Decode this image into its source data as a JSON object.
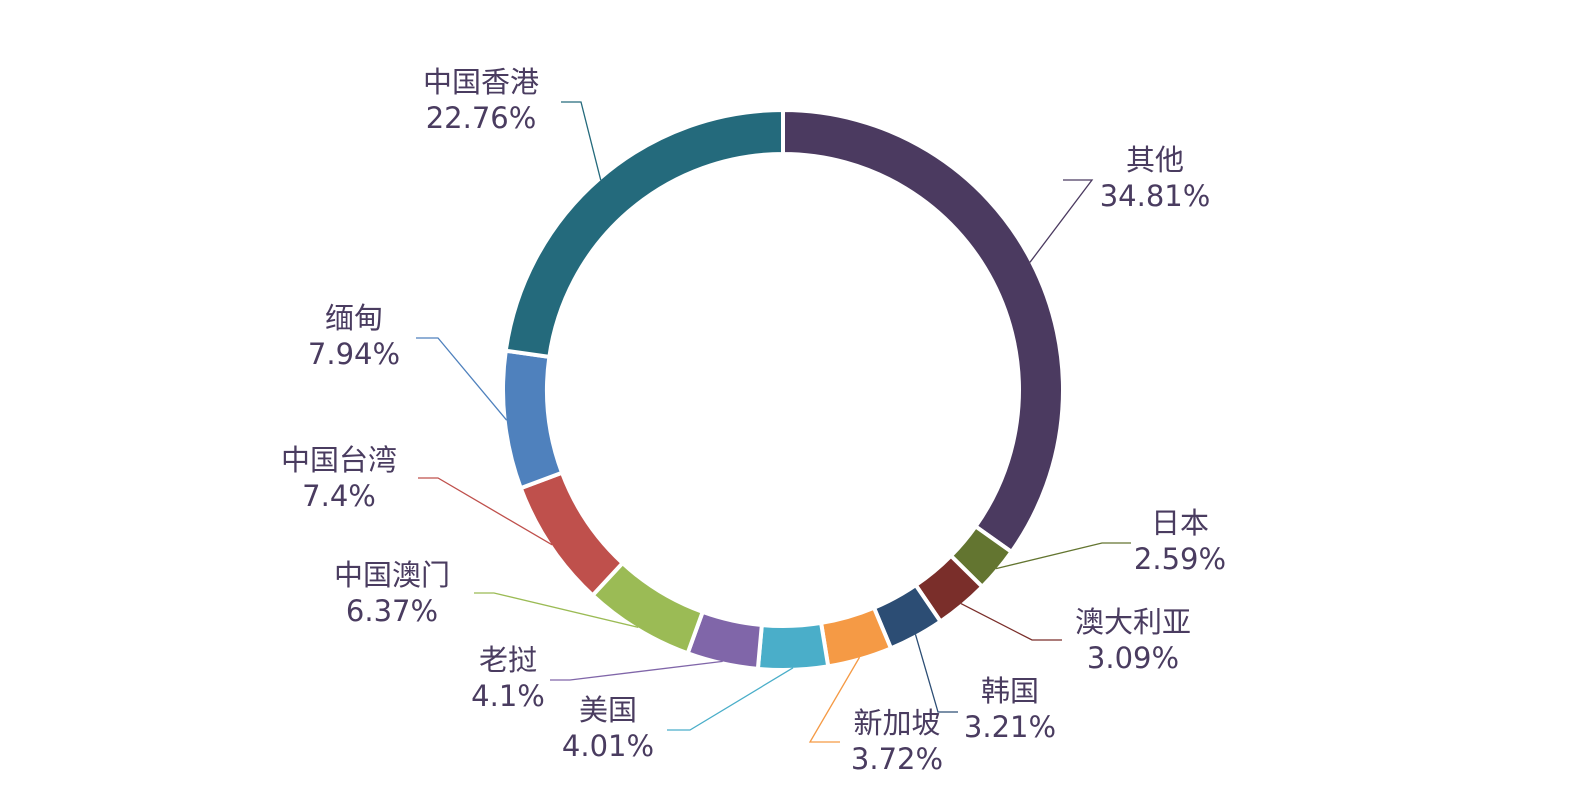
{
  "chart_data": {
    "type": "pie",
    "variant": "donut",
    "title": "",
    "slices": [
      {
        "label": "其他",
        "value": 34.81,
        "value_text": "34.81%",
        "color": "#4b3a60"
      },
      {
        "label": "日本",
        "value": 2.59,
        "value_text": "2.59%",
        "color": "#637530"
      },
      {
        "label": "澳大利亚",
        "value": 3.09,
        "value_text": "3.09%",
        "color": "#7a2e2a"
      },
      {
        "label": "韩国",
        "value": 3.21,
        "value_text": "3.21%",
        "color": "#2c4d74"
      },
      {
        "label": "新加坡",
        "value": 3.72,
        "value_text": "3.72%",
        "color": "#f59a45"
      },
      {
        "label": "美国",
        "value": 4.01,
        "value_text": "4.01%",
        "color": "#4aaec9"
      },
      {
        "label": "老挝",
        "value": 4.1,
        "value_text": "4.1%",
        "color": "#8066a9"
      },
      {
        "label": "中国澳门",
        "value": 6.37,
        "value_text": "6.37%",
        "color": "#9bbb55"
      },
      {
        "label": "中国台湾",
        "value": 7.4,
        "value_text": "7.4%",
        "color": "#bf504c"
      },
      {
        "label": "缅甸",
        "value": 7.94,
        "value_text": "7.94%",
        "color": "#4f81bd"
      },
      {
        "label": "中国香港",
        "value": 22.76,
        "value_text": "22.76%",
        "color": "#246a7c"
      }
    ]
  }
}
